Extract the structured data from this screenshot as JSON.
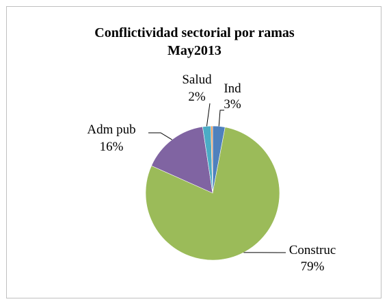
{
  "chart_data": {
    "type": "pie",
    "title": "Conflictividad sectorial por ramas",
    "subtitle": "May2013",
    "slices": [
      {
        "name": "Ind",
        "value": 3,
        "label": "3%",
        "color": "#4f81bd"
      },
      {
        "name": "Construc",
        "value": 79,
        "label": "79%",
        "color": "#9bbb59"
      },
      {
        "name": "Adm pub",
        "value": 16,
        "label": "16%",
        "color": "#8064a2"
      },
      {
        "name": "Salud",
        "value": 2,
        "label": "2%",
        "color": "#4bacc6"
      },
      {
        "name": "",
        "value": 0.4,
        "label": "",
        "color": "#f79646"
      }
    ],
    "legend": "none",
    "data_labels": "outside with leader lines"
  }
}
